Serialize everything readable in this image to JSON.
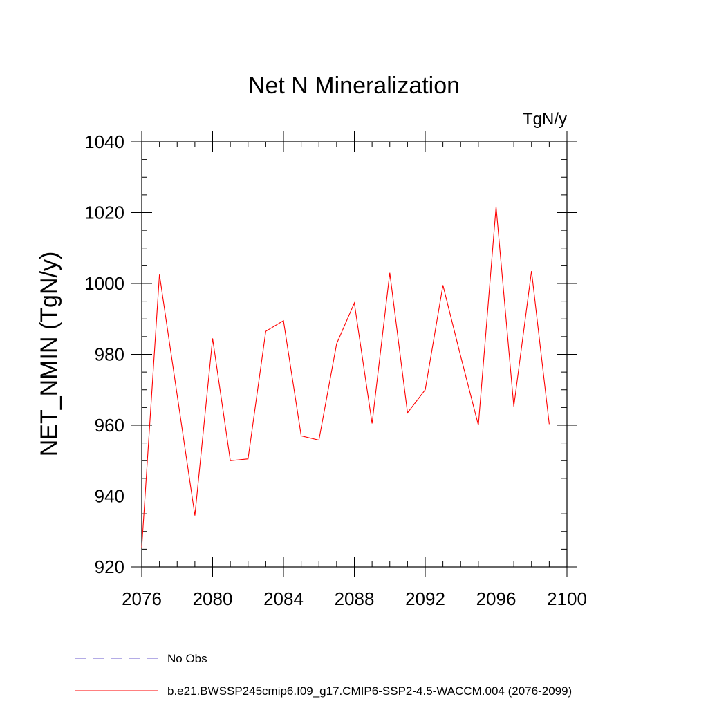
{
  "chart_data": {
    "type": "line",
    "title": "Net N Mineralization",
    "units_label": "TgN/y",
    "ylabel": "NET_NMIN  (TgN/y)",
    "xlabel": "",
    "xlim": [
      2076,
      2100
    ],
    "ylim": [
      920,
      1040
    ],
    "x_ticks": [
      2076,
      2080,
      2084,
      2088,
      2092,
      2096,
      2100
    ],
    "y_ticks": [
      920,
      940,
      960,
      980,
      1000,
      1020,
      1040
    ],
    "x_minor_step": 1,
    "y_minor_step": 5,
    "grid": false,
    "legend_position": "bottom",
    "series": [
      {
        "name": "b.e21.BWSSP245cmip6.f09_g17.CMIP6-SSP2-4.5-WACCM.004 (2076-2099)",
        "color": "#ff0000",
        "style": "solid",
        "x": [
          2076,
          2077,
          2078,
          2079,
          2080,
          2081,
          2082,
          2083,
          2084,
          2085,
          2086,
          2087,
          2088,
          2089,
          2090,
          2091,
          2092,
          2093,
          2094,
          2095,
          2096,
          2097,
          2098,
          2099
        ],
        "values": [
          925.5,
          1002.5,
          968.5,
          934.5,
          984.5,
          950.0,
          950.5,
          986.5,
          989.5,
          957.0,
          955.8,
          983.0,
          994.5,
          960.5,
          1003.0,
          963.5,
          970.0,
          999.5,
          979.5,
          960.0,
          1021.7,
          965.3,
          1003.5,
          960.3
        ]
      }
    ],
    "legend": [
      {
        "label": "No Obs",
        "color": "#6a5acd",
        "style": "dashed"
      },
      {
        "label": "b.e21.BWSSP245cmip6.f09_g17.CMIP6-SSP2-4.5-WACCM.004 (2076-2099)",
        "color": "#ff0000",
        "style": "solid"
      }
    ]
  }
}
